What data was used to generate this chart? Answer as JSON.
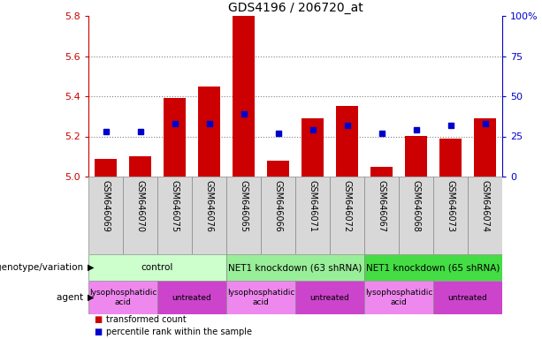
{
  "title": "GDS4196 / 206720_at",
  "samples": [
    "GSM646069",
    "GSM646070",
    "GSM646075",
    "GSM646076",
    "GSM646065",
    "GSM646066",
    "GSM646071",
    "GSM646072",
    "GSM646067",
    "GSM646068",
    "GSM646073",
    "GSM646074"
  ],
  "bar_values": [
    5.09,
    5.1,
    5.39,
    5.45,
    5.8,
    5.08,
    5.29,
    5.35,
    5.05,
    5.2,
    5.19,
    5.29
  ],
  "bar_base": 5.0,
  "percentile_values": [
    5.225,
    5.225,
    5.265,
    5.265,
    5.31,
    5.215,
    5.235,
    5.255,
    5.215,
    5.235,
    5.255,
    5.265
  ],
  "ylim": [
    5.0,
    5.8
  ],
  "yticks_left": [
    5.0,
    5.2,
    5.4,
    5.6,
    5.8
  ],
  "yticks_right": [
    0,
    25,
    50,
    75,
    100
  ],
  "bar_color": "#cc0000",
  "percentile_color": "#0000cc",
  "bar_width": 0.65,
  "genotype_groups": [
    {
      "label": "control",
      "start": 0,
      "end": 4,
      "color": "#ccffcc"
    },
    {
      "label": "NET1 knockdown (63 shRNA)",
      "start": 4,
      "end": 8,
      "color": "#99ee99"
    },
    {
      "label": "NET1 knockdown (65 shRNA)",
      "start": 8,
      "end": 12,
      "color": "#44dd44"
    }
  ],
  "agent_groups": [
    {
      "label": "lysophosphatidic\nacid",
      "start": 0,
      "end": 2,
      "color": "#ee88ee"
    },
    {
      "label": "untreated",
      "start": 2,
      "end": 4,
      "color": "#cc44cc"
    },
    {
      "label": "lysophosphatidic\nacid",
      "start": 4,
      "end": 6,
      "color": "#ee88ee"
    },
    {
      "label": "untreated",
      "start": 6,
      "end": 8,
      "color": "#cc44cc"
    },
    {
      "label": "lysophosphatidic\nacid",
      "start": 8,
      "end": 10,
      "color": "#ee88ee"
    },
    {
      "label": "untreated",
      "start": 10,
      "end": 12,
      "color": "#cc44cc"
    }
  ],
  "legend_items": [
    {
      "label": "transformed count",
      "color": "#cc0000"
    },
    {
      "label": "percentile rank within the sample",
      "color": "#0000cc"
    }
  ],
  "left_label": "genotype/variation",
  "agent_label": "agent",
  "dotted_lines": [
    5.2,
    5.4,
    5.6
  ],
  "right_axis_color": "#0000cc",
  "left_axis_color": "#cc0000",
  "cell_color": "#d8d8d8"
}
